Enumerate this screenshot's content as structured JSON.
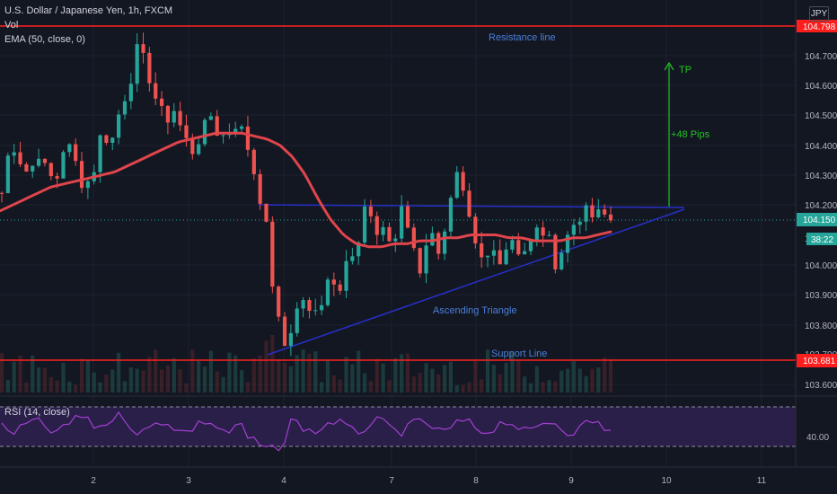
{
  "header": {
    "symbol_title": "U.S. Dollar / Japanese Yen, 1h, FXCM",
    "vol_label": "Vol",
    "ema_label": "EMA (50, close, 0)",
    "currency_button": "JPY"
  },
  "price_axis": {
    "ticks": [
      "104.700",
      "104.600",
      "104.500",
      "104.400",
      "104.300",
      "104.200",
      "104.000",
      "103.900",
      "103.800",
      "103.600"
    ],
    "resistance_tag": "104.798",
    "current_tag": "104.150",
    "countdown_tag": "38:22",
    "support_tag": "103.681",
    "partial_tag_a": "1",
    "partial_tag_b": "103.700"
  },
  "time_axis": {
    "ticks": [
      "2",
      "3",
      "4",
      "7",
      "8",
      "9",
      "10",
      "11"
    ]
  },
  "annotations": {
    "resistance": "Resistance line",
    "support": "Support Line",
    "triangle": "Ascending Triangle",
    "tp": "TP",
    "pips": "+48 Pips"
  },
  "rsi": {
    "label": "RSI (14, close)",
    "tick": "40.00"
  },
  "colors": {
    "background": "#131722",
    "bull": "#26a69a",
    "bear": "#ef5350",
    "ema": "#e0454b",
    "level": "#ff2020",
    "triangle": "#2630c9",
    "annotation_text": "#4a7fd9",
    "target": "#22c422",
    "rsi_line": "#a33fd3",
    "rsi_band": "#2a1f48"
  },
  "chart_data": {
    "type": "candlestick",
    "title": "U.S. Dollar / Japanese Yen, 1h, FXCM",
    "y_range": [
      103.57,
      104.85
    ],
    "x_labels": [
      "2",
      "3",
      "4",
      "7",
      "8",
      "9",
      "10",
      "11"
    ],
    "levels": {
      "resistance": 104.798,
      "support": 103.681,
      "current": 104.15
    },
    "triangle": {
      "top": 104.2,
      "bottom_start": 103.7,
      "bottom_end": 104.15
    },
    "target_pips": 48,
    "ema_period": 50,
    "close_path": [
      104.24,
      104.42,
      104.35,
      104.3,
      104.38,
      104.3,
      104.28,
      104.42,
      104.35,
      104.26,
      104.3,
      104.45,
      104.4,
      104.52,
      104.6,
      104.73,
      104.65,
      104.55,
      104.48,
      104.52,
      104.43,
      104.38,
      104.44,
      104.5,
      104.42,
      104.45,
      104.48,
      104.4,
      104.28,
      104.15,
      103.88,
      103.72,
      103.8,
      103.9,
      103.82,
      103.86,
      103.98,
      103.9,
      104.05,
      104.02,
      104.2,
      104.1,
      104.13,
      104.05,
      104.18,
      104.1,
      103.98,
      104.12,
      104.05,
      104.15,
      104.3,
      104.2,
      104.06,
      104.0,
      104.05,
      104.02,
      104.1,
      104.04,
      104.06,
      104.12,
      104.1,
      104.0,
      104.08,
      104.14,
      104.18,
      104.16,
      104.17,
      104.15
    ],
    "ema": [
      104.18,
      104.2,
      104.22,
      104.24,
      104.26,
      104.27,
      104.28,
      104.29,
      104.3,
      104.31,
      104.33,
      104.35,
      104.37,
      104.39,
      104.41,
      104.42,
      104.43,
      104.44,
      104.44,
      104.44,
      104.43,
      104.42,
      104.4,
      104.36,
      104.3,
      104.22,
      104.15,
      104.1,
      104.07,
      104.06,
      104.06,
      104.07,
      104.07,
      104.08,
      104.08,
      104.09,
      104.09,
      104.1,
      104.1,
      104.1,
      104.09,
      104.09,
      104.08,
      104.08,
      104.08,
      104.09,
      104.09,
      104.1,
      104.11
    ]
  }
}
